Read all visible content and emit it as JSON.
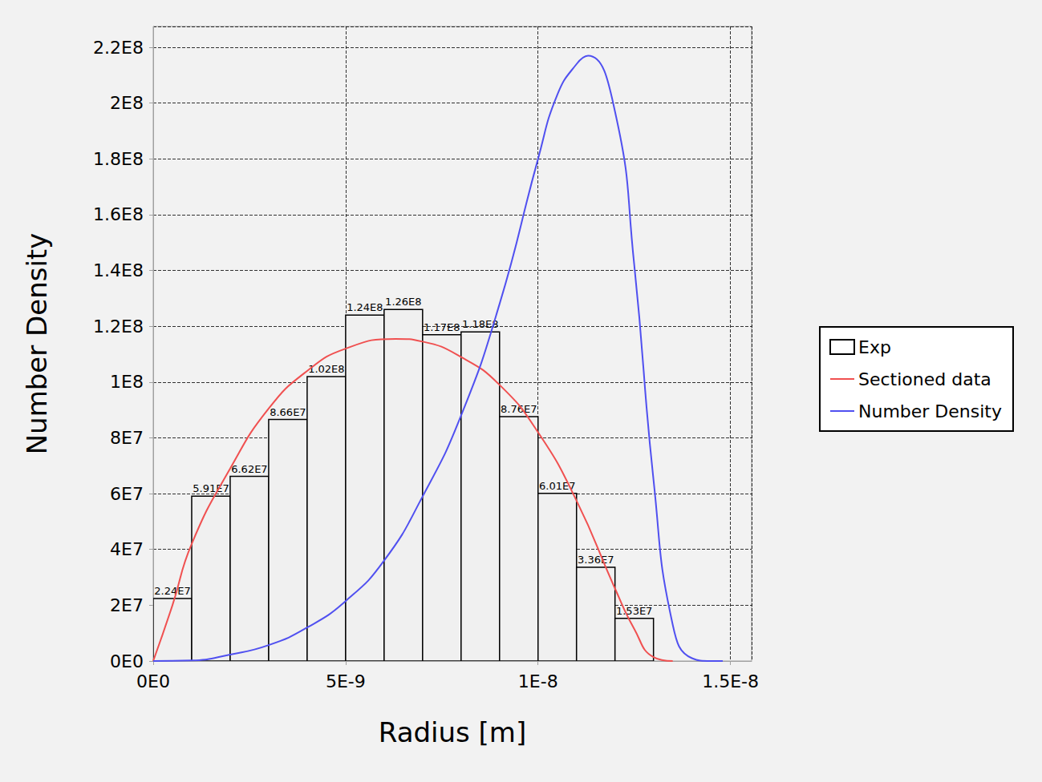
{
  "chart_data": {
    "type": "histogram",
    "x_label": "Radius [m]",
    "y_label": "Number Density",
    "bins": [
      0,
      1e-09,
      2e-09,
      3e-09,
      4e-09,
      5e-09,
      6e-09,
      7e-09,
      8e-09,
      9e-09,
      1e-08,
      1.1e-08,
      1.2e-08,
      1.3e-08
    ],
    "series": [
      {
        "name": "Exp",
        "type": "bar",
        "color": "#f0f0f0",
        "values": [
          22400000,
          59100000,
          66200000,
          86600000,
          102000000,
          124000000,
          126000000,
          117000000,
          118000000,
          87600000,
          60100000,
          33600000,
          15300000
        ],
        "value_labels": [
          "2.24E7",
          "5.91E7",
          "6.62E7",
          "8.66E7",
          "1.02E8",
          "1.24E8",
          "1.26E8",
          "1.17E8",
          "1.18E8",
          "8.76E7",
          "6.01E7",
          "3.36E7",
          "1.53E7"
        ]
      },
      {
        "name": "Sectioned data",
        "type": "line",
        "color": "#f05050",
        "x": [
          0,
          5e-10,
          1e-09,
          2e-09,
          3e-09,
          4e-09,
          5e-09,
          6.3e-09,
          7e-09,
          8e-09,
          9e-09,
          1e-08,
          1.1e-08,
          1.2e-08,
          1.25e-08,
          1.3e-08,
          1.35e-08
        ],
        "values": [
          0,
          20000000,
          42000000,
          69000000,
          90500000,
          104000000,
          112000000,
          115500000,
          114500000,
          109000000,
          99000000,
          82000000,
          57500000,
          26000000,
          11500000,
          1400000,
          0
        ]
      },
      {
        "name": "Number Density",
        "type": "line",
        "color": "#5050f0",
        "x": [
          0,
          1e-09,
          2e-09,
          3e-09,
          4e-09,
          5e-09,
          6e-09,
          7e-09,
          8e-09,
          9e-09,
          1e-08,
          1.05e-08,
          1.1e-08,
          1.13e-08,
          1.2e-08,
          1.25e-08,
          1.3e-08,
          1.35e-08,
          1.4e-08,
          1.45e-08,
          1.48e-08
        ],
        "values": [
          0,
          200000,
          2300000,
          5700000,
          12000000,
          21500000,
          36000000,
          59000000,
          88000000,
          128000000,
          180000000,
          203000000,
          214000000,
          217000000,
          197000000,
          142000000,
          65000000,
          13000000,
          1000000,
          0,
          0
        ]
      }
    ],
    "xlim": [
      0,
      1.555e-08
    ],
    "xticks": [
      {
        "value": 0,
        "label": "0E0"
      },
      {
        "value": 5e-09,
        "label": "5E-9"
      },
      {
        "value": 1e-08,
        "label": "1E-8"
      },
      {
        "value": 1.5e-08,
        "label": "1.5E-8"
      }
    ],
    "ylim": [
      0,
      227500000
    ],
    "yticks": [
      {
        "value": 0,
        "label": "0E0"
      },
      {
        "value": 20000000,
        "label": "2E7"
      },
      {
        "value": 40000000,
        "label": "4E7"
      },
      {
        "value": 60000000,
        "label": "6E7"
      },
      {
        "value": 80000000,
        "label": "8E7"
      },
      {
        "value": 100000000,
        "label": "1E8"
      },
      {
        "value": 120000000,
        "label": "1.2E8"
      },
      {
        "value": 140000000,
        "label": "1.4E8"
      },
      {
        "value": 160000000,
        "label": "1.6E8"
      },
      {
        "value": 180000000,
        "label": "1.8E8"
      },
      {
        "value": 200000000,
        "label": "2E8"
      },
      {
        "value": 220000000,
        "label": "2.2E8"
      }
    ],
    "grid": true,
    "legend": "right",
    "data_labels": true
  }
}
